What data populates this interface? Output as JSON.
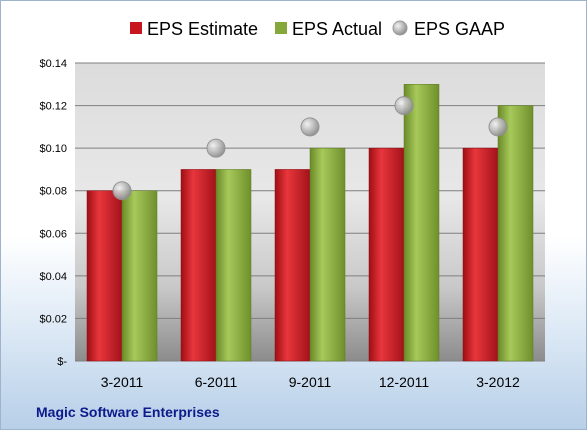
{
  "company": "Magic Software Enterprises",
  "chart_data": {
    "type": "bar",
    "categories": [
      "3-2011",
      "6-2011",
      "9-2011",
      "12-2011",
      "3-2012"
    ],
    "series": [
      {
        "name": "EPS Estimate",
        "kind": "bar",
        "color": "#c8161e",
        "values": [
          0.08,
          0.09,
          0.09,
          0.1,
          0.1
        ]
      },
      {
        "name": "EPS Actual",
        "kind": "bar",
        "color": "#86a83a",
        "values": [
          0.08,
          0.09,
          0.1,
          0.13,
          0.12
        ]
      },
      {
        "name": "EPS GAAP",
        "kind": "marker",
        "color": "#a8a8a8",
        "values": [
          0.08,
          0.1,
          0.11,
          0.12,
          0.11
        ]
      }
    ],
    "yticks": [
      "$-",
      "$0.02",
      "$0.04",
      "$0.06",
      "$0.08",
      "$0.10",
      "$0.12",
      "$0.14"
    ],
    "ylim": [
      0,
      0.14
    ],
    "grid": true,
    "legend": "top"
  }
}
